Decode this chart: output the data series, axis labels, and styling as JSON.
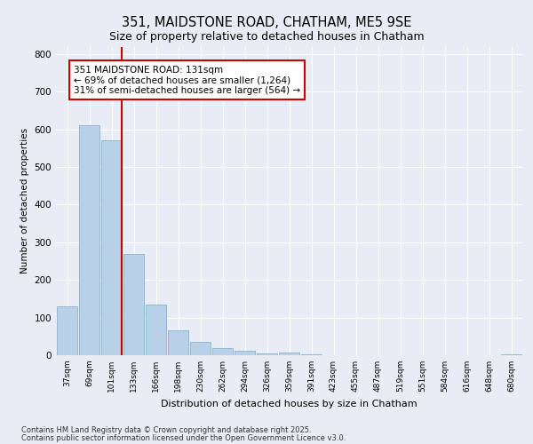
{
  "title_line1": "351, MAIDSTONE ROAD, CHATHAM, ME5 9SE",
  "title_line2": "Size of property relative to detached houses in Chatham",
  "xlabel": "Distribution of detached houses by size in Chatham",
  "ylabel": "Number of detached properties",
  "footer_line1": "Contains HM Land Registry data © Crown copyright and database right 2025.",
  "footer_line2": "Contains public sector information licensed under the Open Government Licence v3.0.",
  "categories": [
    "37sqm",
    "69sqm",
    "101sqm",
    "133sqm",
    "166sqm",
    "198sqm",
    "230sqm",
    "262sqm",
    "294sqm",
    "326sqm",
    "359sqm",
    "391sqm",
    "423sqm",
    "455sqm",
    "487sqm",
    "519sqm",
    "551sqm",
    "584sqm",
    "616sqm",
    "648sqm",
    "680sqm"
  ],
  "values": [
    130,
    610,
    570,
    270,
    135,
    65,
    35,
    20,
    12,
    5,
    8,
    2,
    1,
    0,
    0,
    0,
    0,
    0,
    0,
    0,
    2
  ],
  "bar_color": "#b8d0e8",
  "bar_edge_color": "#7aaac8",
  "vline_color": "#cc0000",
  "vline_xindex": 2.45,
  "annotation_text": "351 MAIDSTONE ROAD: 131sqm\n← 69% of detached houses are smaller (1,264)\n31% of semi-detached houses are larger (564) →",
  "annotation_box_color": "#ffffff",
  "annotation_box_edge": "#cc0000",
  "ylim": [
    0,
    820
  ],
  "yticks": [
    0,
    100,
    200,
    300,
    400,
    500,
    600,
    700,
    800
  ],
  "bg_color": "#e8edf5",
  "plot_bg_color": "#e8edf5",
  "grid_color": "#ffffff"
}
